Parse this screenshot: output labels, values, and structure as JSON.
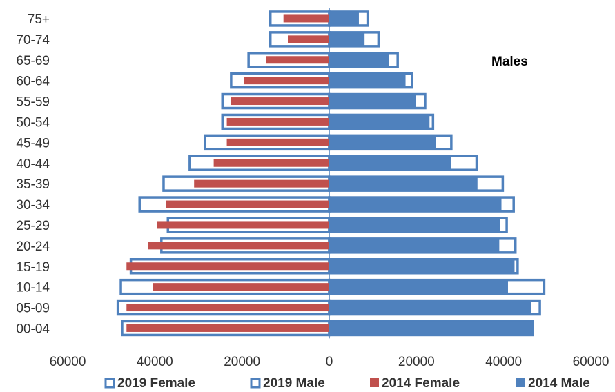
{
  "chart_data": {
    "type": "bar",
    "orientation": "horizontal",
    "categories": [
      "00-04",
      "05-09",
      "10-14",
      "15-19",
      "20-24",
      "25-29",
      "30-34",
      "35-39",
      "40-44",
      "45-49",
      "50-54",
      "55-59",
      "60-64",
      "65-69",
      "70-74",
      "75+"
    ],
    "series": [
      {
        "name": "2019 Female",
        "values": [
          47500,
          48500,
          47800,
          45500,
          38500,
          37000,
          43500,
          38000,
          32000,
          28500,
          24500,
          24500,
          22500,
          18500,
          13500,
          13500
        ],
        "color": "#4f81bd",
        "style": "outline"
      },
      {
        "name": "2019 Male",
        "values": [
          46700,
          48300,
          49300,
          43200,
          42700,
          40700,
          42300,
          39800,
          33800,
          28000,
          23800,
          22000,
          19000,
          15700,
          11300,
          8800
        ],
        "color": "#4f81bd",
        "style": "outline"
      },
      {
        "name": "2014 Female",
        "values": [
          46500,
          46500,
          40500,
          46500,
          41500,
          39500,
          37500,
          31000,
          26500,
          23500,
          23500,
          22500,
          19500,
          14500,
          9500,
          10500
        ],
        "color": "#c0504d",
        "style": "solid"
      },
      {
        "name": "2014 Male",
        "values": [
          46700,
          46300,
          41000,
          42500,
          39000,
          39200,
          39500,
          34000,
          28000,
          24500,
          23000,
          19800,
          17500,
          13700,
          8100,
          6800
        ],
        "color": "#4f81bd",
        "style": "solid"
      }
    ],
    "xticks": [
      "60000",
      "40000",
      "20000",
      "0",
      "20000",
      "40000",
      "60000"
    ],
    "xlim": [
      -60000,
      60000
    ],
    "annotation": "Males",
    "legend_position": "bottom",
    "grid": false
  }
}
